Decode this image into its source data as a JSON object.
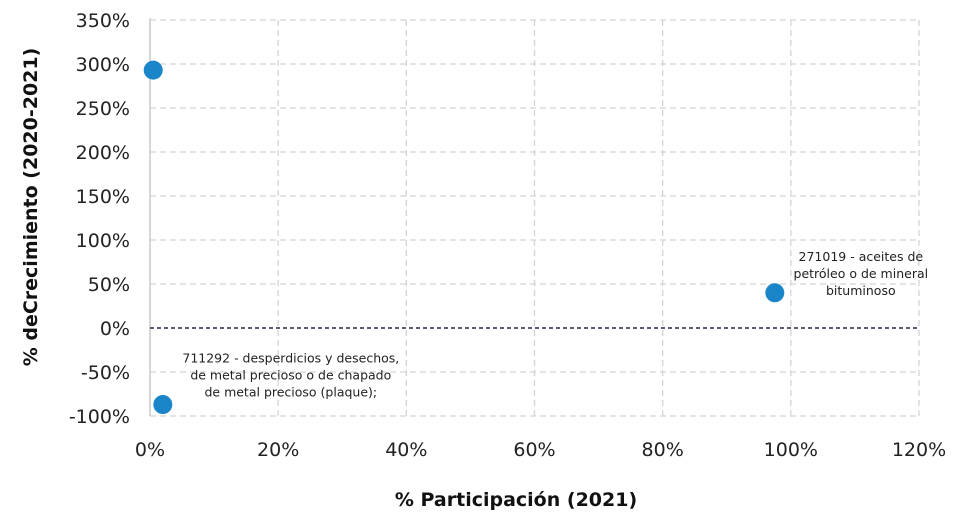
{
  "chart_data": {
    "type": "scatter",
    "xlabel": "% Participación (2021)",
    "ylabel": "% deCrecimiento (2020-2021)",
    "xlim": [
      0,
      120
    ],
    "ylim": [
      -100,
      350
    ],
    "x_ticks": [
      "0%",
      "20%",
      "40%",
      "60%",
      "80%",
      "100%",
      "120%"
    ],
    "y_ticks": [
      "350%",
      "300%",
      "250%",
      "200%",
      "150%",
      "100%",
      "50%",
      "0%",
      "-50%",
      "-100%"
    ],
    "grid": true,
    "zero_reference_line": true,
    "point_color": "#1a86c9",
    "points": [
      {
        "x": 0.5,
        "y": 293,
        "label": []
      },
      {
        "x": 97.5,
        "y": 40,
        "label": [
          "271019 - aceites de",
          "petróleo o de mineral",
          "bituminoso"
        ]
      },
      {
        "x": 2,
        "y": -87,
        "label": [
          "711292 - desperdicios y desechos,",
          "de metal precioso o de chapado",
          "de metal precioso (plaque);"
        ]
      }
    ]
  }
}
